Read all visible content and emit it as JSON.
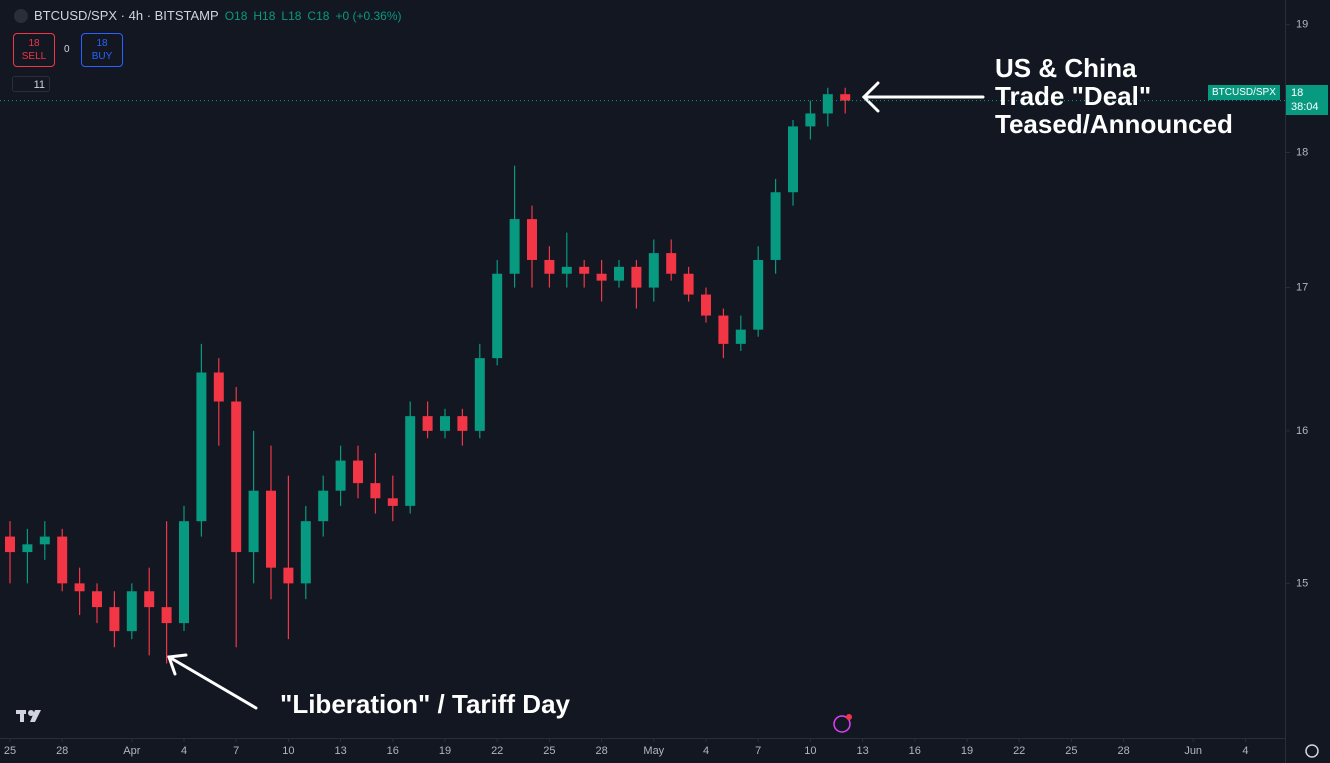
{
  "chart_data": {
    "type": "candlestick",
    "title": "BTCUSD/SPX · 4h · BITSTAMP",
    "ohlc_legend": [
      "O18",
      "H18",
      "L18",
      "C18",
      "+0 (+0.36%)"
    ],
    "trade": {
      "sell_price": "18",
      "sell_label": "SELL",
      "spread": "0",
      "buy_price": "18",
      "buy_label": "BUY"
    },
    "indicators_count": "11",
    "price_tag": {
      "symbol": "BTCUSD/SPX",
      "last": "18",
      "countdown": "38:04"
    },
    "annotations": {
      "top": [
        "US & China",
        "Trade \"Deal\"",
        "Teased/Announced"
      ],
      "bottom": "\"Liberation\" / Tariff Day"
    },
    "log_scale": true,
    "up_color": "#089981",
    "down_color": "#f23645",
    "x": [
      "Mar 25",
      "Mar 26",
      "Mar 27",
      "Mar 28",
      "Mar 29",
      "Mar 30",
      "Mar 31",
      "Apr 1",
      "Apr 2",
      "Apr 3",
      "Apr 4",
      "Apr 5",
      "Apr 6",
      "Apr 7",
      "Apr 8",
      "Apr 9",
      "Apr 10",
      "Apr 11",
      "Apr 12",
      "Apr 13",
      "Apr 14",
      "Apr 15",
      "Apr 16",
      "Apr 17",
      "Apr 18",
      "Apr 19",
      "Apr 20",
      "Apr 21",
      "Apr 22",
      "Apr 23",
      "Apr 24",
      "Apr 25",
      "Apr 26",
      "Apr 27",
      "Apr 28",
      "Apr 29",
      "Apr 30",
      "May 1",
      "May 2",
      "May 3",
      "May 4",
      "May 5",
      "May 6",
      "May 7",
      "May 8",
      "May 9",
      "May 10",
      "May 11",
      "May 12"
    ],
    "open": [
      15.3,
      15.2,
      15.25,
      15.3,
      15.0,
      14.95,
      14.85,
      14.7,
      14.95,
      14.85,
      14.75,
      15.4,
      16.4,
      16.2,
      15.2,
      15.6,
      15.1,
      15.0,
      15.4,
      15.6,
      15.8,
      15.65,
      15.55,
      15.5,
      16.1,
      16.0,
      16.1,
      16.0,
      16.5,
      17.1,
      17.5,
      17.2,
      17.1,
      17.15,
      17.1,
      17.05,
      17.15,
      17.0,
      17.25,
      17.1,
      16.95,
      16.8,
      16.6,
      16.7,
      17.2,
      17.7,
      18.2,
      18.3,
      18.45
    ],
    "high": [
      15.4,
      15.35,
      15.4,
      15.35,
      15.1,
      15.0,
      14.95,
      15.0,
      15.1,
      15.4,
      15.5,
      16.6,
      16.5,
      16.3,
      16.0,
      15.9,
      15.7,
      15.5,
      15.7,
      15.9,
      15.9,
      15.85,
      15.7,
      16.2,
      16.2,
      16.15,
      16.15,
      16.6,
      17.2,
      17.9,
      17.6,
      17.3,
      17.4,
      17.2,
      17.2,
      17.2,
      17.2,
      17.35,
      17.35,
      17.15,
      17.0,
      16.85,
      16.8,
      17.3,
      17.8,
      18.25,
      18.4,
      18.5,
      18.5
    ],
    "low": [
      15.0,
      15.0,
      15.15,
      14.95,
      14.8,
      14.75,
      14.6,
      14.65,
      14.55,
      14.5,
      14.7,
      15.3,
      15.9,
      14.6,
      15.0,
      14.9,
      14.65,
      14.9,
      15.3,
      15.5,
      15.55,
      15.45,
      15.4,
      15.45,
      15.95,
      15.95,
      15.9,
      15.95,
      16.45,
      17.0,
      17.0,
      17.0,
      17.0,
      17.0,
      16.9,
      17.0,
      16.85,
      16.9,
      17.05,
      16.9,
      16.75,
      16.5,
      16.55,
      16.65,
      17.1,
      17.6,
      18.1,
      18.2,
      18.3
    ],
    "close": [
      15.2,
      15.25,
      15.3,
      15.0,
      14.95,
      14.85,
      14.7,
      14.95,
      14.85,
      14.75,
      15.4,
      16.4,
      16.2,
      15.2,
      15.6,
      15.1,
      15.0,
      15.4,
      15.6,
      15.8,
      15.65,
      15.55,
      15.5,
      16.1,
      16.0,
      16.1,
      16.0,
      16.5,
      17.1,
      17.5,
      17.2,
      17.1,
      17.15,
      17.1,
      17.05,
      17.15,
      17.0,
      17.25,
      17.1,
      16.95,
      16.8,
      16.6,
      16.7,
      17.2,
      17.7,
      18.2,
      18.3,
      18.45,
      18.4
    ],
    "ylim": [
      14.05,
      19.2
    ],
    "yticks": [
      15,
      16,
      17,
      18,
      19
    ],
    "xticks": [
      {
        "value": "Mar 25",
        "label": "25"
      },
      {
        "value": "Mar 28",
        "label": "28"
      },
      {
        "value": "Apr 1",
        "label": "Apr"
      },
      {
        "value": "Apr 4",
        "label": "4"
      },
      {
        "value": "Apr 7",
        "label": "7"
      },
      {
        "value": "Apr 10",
        "label": "10"
      },
      {
        "value": "Apr 13",
        "label": "13"
      },
      {
        "value": "Apr 16",
        "label": "16"
      },
      {
        "value": "Apr 19",
        "label": "19"
      },
      {
        "value": "Apr 22",
        "label": "22"
      },
      {
        "value": "Apr 25",
        "label": "25"
      },
      {
        "value": "Apr 28",
        "label": "28"
      },
      {
        "value": "May 1",
        "label": "May"
      },
      {
        "value": "May 4",
        "label": "4"
      },
      {
        "value": "May 7",
        "label": "7"
      },
      {
        "value": "May 10",
        "label": "10"
      },
      {
        "value": "May 13",
        "label": "13"
      },
      {
        "value": "May 16",
        "label": "16"
      },
      {
        "value": "May 19",
        "label": "19"
      },
      {
        "value": "May 22",
        "label": "22"
      },
      {
        "value": "May 25",
        "label": "25"
      },
      {
        "value": "May 28",
        "label": "28"
      },
      {
        "value": "Jun 1",
        "label": "Jun"
      },
      {
        "value": "Jun 4",
        "label": "4"
      }
    ]
  }
}
